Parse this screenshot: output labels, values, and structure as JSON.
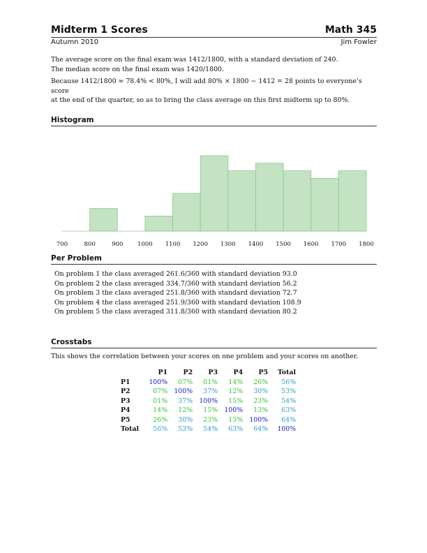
{
  "header": {
    "title": "Midterm 1 Scores",
    "course": "Math 345",
    "term": "Autumn 2010",
    "author": "Jim Fowler"
  },
  "intro": {
    "line1": "The average score on the final exam was 1412/1800, with a standard deviation of 240.",
    "line2": "The median score on the final exam was 1420/1800."
  },
  "adjustment": {
    "line1": "Because 1412/1800 ≈ 78.4% < 80%, I will add 80% × 1800 − 1412 = 28 points to everyone’s score",
    "line2": "at the end of the quarter, so as to bring the class average on this first midterm up to 80%."
  },
  "sections": {
    "histogram": "Histogram",
    "per_problem": "Per Problem",
    "crosstabs": "Crosstabs"
  },
  "colors": {
    "bar_fill": "#c3e3c3",
    "bar_stroke": "#8cc98c",
    "diag": "#1a1ad6",
    "high": "#2f9bc7",
    "low": "#36c236"
  },
  "chart_data": {
    "type": "bar",
    "x_ticks": [
      700,
      800,
      900,
      1000,
      1100,
      1200,
      1300,
      1400,
      1500,
      1600,
      1700,
      1800
    ],
    "bin_width": 100,
    "bins": [
      {
        "start": 700,
        "end": 800,
        "count": 0
      },
      {
        "start": 800,
        "end": 900,
        "count": 3
      },
      {
        "start": 900,
        "end": 1000,
        "count": 0
      },
      {
        "start": 1000,
        "end": 1100,
        "count": 2
      },
      {
        "start": 1100,
        "end": 1200,
        "count": 5
      },
      {
        "start": 1200,
        "end": 1300,
        "count": 10
      },
      {
        "start": 1300,
        "end": 1400,
        "count": 8
      },
      {
        "start": 1400,
        "end": 1500,
        "count": 9
      },
      {
        "start": 1500,
        "end": 1600,
        "count": 8
      },
      {
        "start": 1600,
        "end": 1700,
        "count": 7
      },
      {
        "start": 1700,
        "end": 1800,
        "count": 8
      }
    ],
    "xlim": [
      700,
      1800
    ],
    "ylim": [
      0,
      10
    ],
    "title": "",
    "xlabel": "",
    "ylabel": "",
    "grid": false
  },
  "problems": [
    "On problem 1 the class averaged 261.6/360 with standard deviation 93.0",
    "On problem 2 the class averaged 334.7/360 with standard deviation 56.2",
    "On problem 3 the class averaged 251.8/360 with standard deviation 72.7",
    "On problem 4 the class averaged 251.9/360 with standard deviation 108.9",
    "On problem 5 the class averaged 311.8/360 with standard deviation 80.2"
  ],
  "crosstabs": {
    "description": "This shows the correlation between your scores on one problem and your scores on another.",
    "columns": [
      "P1",
      "P2",
      "P3",
      "P4",
      "P5",
      "Total"
    ],
    "rows": [
      {
        "label": "P1",
        "cells": [
          "100%",
          "07%",
          "01%",
          "14%",
          "26%",
          "56%"
        ],
        "tones": [
          "diag",
          "low",
          "low",
          "low",
          "low",
          "high"
        ]
      },
      {
        "label": "P2",
        "cells": [
          "07%",
          "100%",
          "37%",
          "12%",
          "30%",
          "53%"
        ],
        "tones": [
          "low",
          "diag",
          "high",
          "low",
          "high",
          "high"
        ]
      },
      {
        "label": "P3",
        "cells": [
          "01%",
          "37%",
          "100%",
          "15%",
          "23%",
          "54%"
        ],
        "tones": [
          "low",
          "high",
          "diag",
          "low",
          "low",
          "high"
        ]
      },
      {
        "label": "P4",
        "cells": [
          "14%",
          "12%",
          "15%",
          "100%",
          "13%",
          "63%"
        ],
        "tones": [
          "low",
          "low",
          "low",
          "diag",
          "low",
          "high"
        ]
      },
      {
        "label": "P5",
        "cells": [
          "26%",
          "30%",
          "23%",
          "13%",
          "100%",
          "64%"
        ],
        "tones": [
          "low",
          "high",
          "low",
          "low",
          "diag",
          "high"
        ]
      },
      {
        "label": "Total",
        "cells": [
          "56%",
          "53%",
          "54%",
          "63%",
          "64%",
          "100%"
        ],
        "tones": [
          "high",
          "high",
          "high",
          "high",
          "high",
          "diag"
        ]
      }
    ]
  }
}
